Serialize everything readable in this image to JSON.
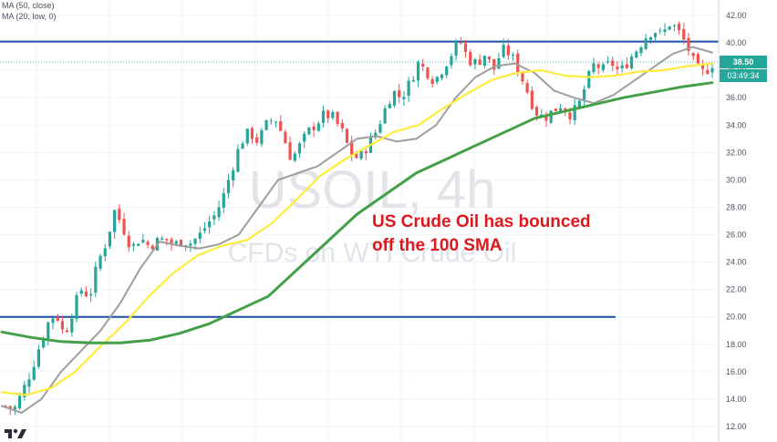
{
  "legend": {
    "ma1": "MA (50, close)",
    "ma2": "MA (20, low, 0)"
  },
  "watermark": {
    "symbol": "USOIL, 4h",
    "subtitle": "CFDs on WTI Crude Oil"
  },
  "annotation": {
    "line1": "US Crude Oil has bounced",
    "line2": "off the 100 SMA"
  },
  "price_tags": {
    "last_price": "38.50",
    "countdown": "03:49:34"
  },
  "colors": {
    "bull": "#26a69a",
    "bear": "#ef5350",
    "ma20": "#9e9e9e",
    "ma50": "#ffeb3b",
    "sma100": "#43a047",
    "hline": "#1e4fa5",
    "annotation": "#e0161d",
    "price_tag": "#26a69a",
    "countdown_tag": "#26a69a"
  },
  "chart_data": {
    "type": "line",
    "title": "USOIL, 4h",
    "y_axis": {
      "min": 12,
      "max": 42,
      "tick_labels": [
        "42.00",
        "40.00",
        "38.00",
        "36.00",
        "34.00",
        "32.00",
        "30.00",
        "28.00",
        "26.00",
        "24.00",
        "22.00",
        "20.00",
        "18.00",
        "16.00",
        "14.00",
        "12.00"
      ]
    },
    "horizontal_levels": [
      {
        "value": 40.1,
        "extent": "full"
      },
      {
        "value": 20.0,
        "extent": "partial"
      }
    ],
    "last_price": 38.5,
    "price_path": [
      13.5,
      13.2,
      14.5,
      16.0,
      17.8,
      19.5,
      20.3,
      18.6,
      20.5,
      22.0,
      21.5,
      24.0,
      25.5,
      27.8,
      26.5,
      25.0,
      25.8,
      25.2,
      25.5,
      25.7,
      25.2,
      25.6,
      25.4,
      25.9,
      26.8,
      27.5,
      29.0,
      31.0,
      32.8,
      33.5,
      32.8,
      34.0,
      34.6,
      33.2,
      31.5,
      32.5,
      33.5,
      34.2,
      34.8,
      34.5,
      33.5,
      32.0,
      31.5,
      32.5,
      33.5,
      35.0,
      36.5,
      36.0,
      37.0,
      38.5,
      38.0,
      37.2,
      38.2,
      39.2,
      40.2,
      38.8,
      38.5,
      39.2,
      38.0,
      39.5,
      39.2,
      38.0,
      36.5,
      35.0,
      34.5,
      35.0,
      35.5,
      34.8,
      35.2,
      37.0,
      38.5,
      38.0,
      38.6,
      37.8,
      38.7,
      39.5,
      40.4,
      41.0,
      40.5,
      41.5,
      40.8,
      39.8,
      38.2,
      37.8,
      38.5
    ],
    "series": [
      {
        "name": "MA (20, low, 0)",
        "values": [
          13.5,
          13.0,
          14.0,
          16.0,
          17.5,
          19.0,
          21.0,
          23.5,
          25.5,
          25.2,
          25.0,
          25.3,
          26.0,
          28.0,
          30.0,
          30.5,
          31.0,
          32.0,
          33.0,
          33.2,
          32.8,
          33.0,
          34.0,
          36.0,
          37.5,
          38.3,
          38.5,
          37.8,
          36.5,
          36.0,
          35.6,
          36.2,
          37.2,
          38.2,
          39.2,
          39.7,
          39.3
        ]
      },
      {
        "name": "MA (50, close)",
        "values": [
          14.5,
          14.3,
          14.8,
          16.0,
          17.8,
          19.5,
          21.5,
          23.2,
          24.5,
          25.2,
          25.6,
          26.8,
          28.5,
          30.3,
          31.5,
          32.5,
          33.5,
          34.0,
          35.2,
          36.3,
          37.3,
          37.8,
          38.0,
          37.6,
          37.5,
          37.6,
          37.9,
          38.0,
          38.3,
          38.5
        ]
      },
      {
        "name": "SMA 100",
        "values": [
          18.9,
          18.5,
          18.2,
          18.1,
          18.1,
          18.3,
          18.8,
          19.5,
          20.5,
          21.5,
          23.5,
          25.5,
          27.5,
          29.0,
          30.5,
          31.5,
          32.5,
          33.5,
          34.5,
          35.0,
          35.5,
          36.0,
          36.4,
          36.8,
          37.1
        ]
      }
    ]
  }
}
